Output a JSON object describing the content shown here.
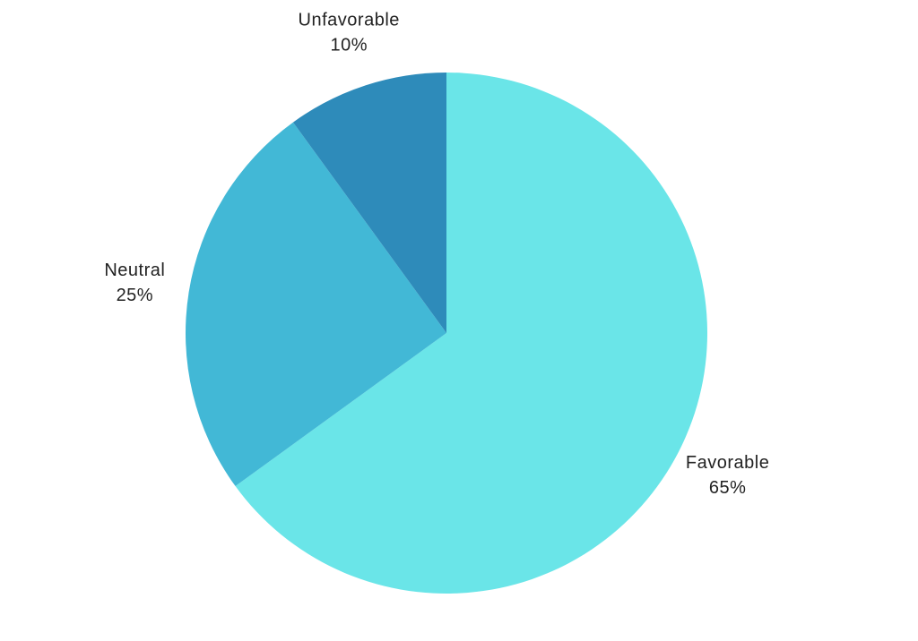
{
  "chart_data": {
    "type": "pie",
    "categories": [
      "Favorable",
      "Neutral",
      "Unfavorable"
    ],
    "values": [
      65,
      25,
      10
    ],
    "value_labels": [
      "65%",
      "25%",
      "10%"
    ],
    "colors": [
      "#6ae5e8",
      "#42b8d6",
      "#2e8bba"
    ]
  }
}
